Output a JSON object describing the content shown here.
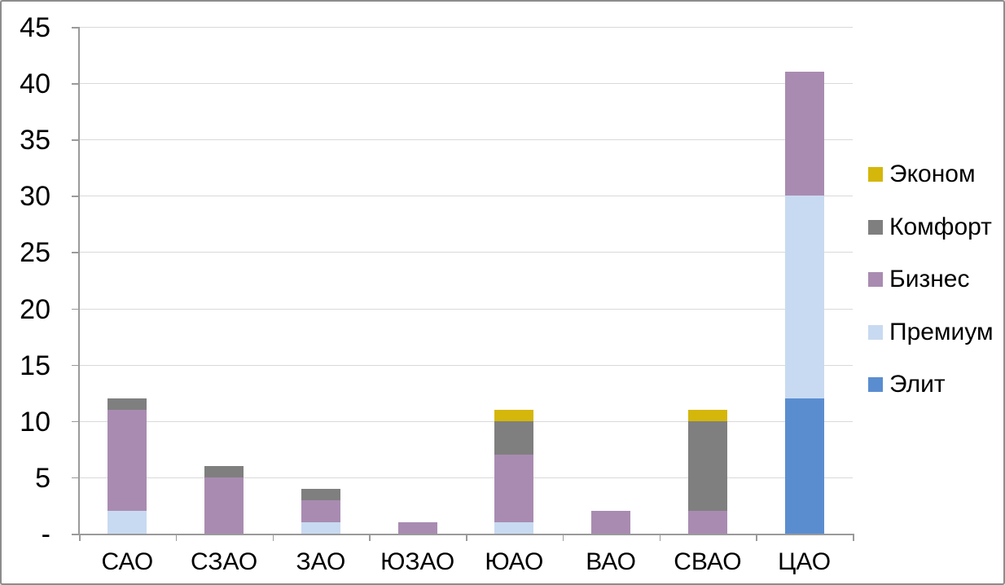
{
  "chart_data": {
    "type": "bar",
    "stacked": true,
    "title": "",
    "xlabel": "",
    "ylabel": "",
    "categories": [
      "САО",
      "СЗАО",
      "ЗАО",
      "ЮЗАО",
      "ЮАО",
      "ВАО",
      "СВАО",
      "ЦАО"
    ],
    "series": [
      {
        "name": "Элит",
        "color": "#5a8dd0",
        "values": [
          0,
          0,
          0,
          0,
          0,
          0,
          0,
          12
        ]
      },
      {
        "name": "Премиум",
        "color": "#c8daf1",
        "values": [
          2,
          0,
          1,
          0,
          1,
          0,
          0,
          18
        ]
      },
      {
        "name": "Бизнес",
        "color": "#a98bb1",
        "values": [
          9,
          5,
          2,
          1,
          6,
          2,
          2,
          11
        ]
      },
      {
        "name": "Комфорт",
        "color": "#7f7f7f",
        "values": [
          1,
          1,
          1,
          0,
          3,
          0,
          8,
          0
        ]
      },
      {
        "name": "Эконом",
        "color": "#d4b70a",
        "values": [
          0,
          0,
          0,
          0,
          1,
          0,
          1,
          0
        ]
      }
    ],
    "totals": [
      12,
      6,
      4,
      1,
      11,
      2,
      11,
      41
    ],
    "y_axis": {
      "min": 0,
      "max": 45,
      "step": 5,
      "tick_labels": [
        "-",
        "5",
        "10",
        "15",
        "20",
        "25",
        "30",
        "35",
        "40",
        "45"
      ]
    },
    "grid": true,
    "legend": {
      "position": "right",
      "order": [
        "Эконом",
        "Комфорт",
        "Бизнес",
        "Премиум",
        "Элит"
      ]
    },
    "colors": {
      "background": "#ffffff",
      "gridline": "#d9d9d9",
      "axis": "#9a9a9a",
      "border": "#8c8c8c",
      "text": "#000000"
    }
  }
}
